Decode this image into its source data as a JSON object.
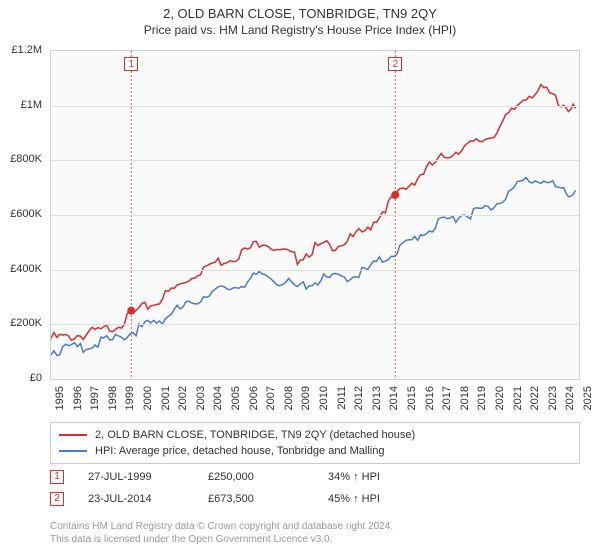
{
  "title": "2, OLD BARN CLOSE, TONBRIDGE, TN9 2QY",
  "subtitle": "Price paid vs. HM Land Registry's House Price Index (HPI)",
  "chart": {
    "type": "line",
    "background_color": "#fafafa",
    "border_color": "#d0d0d0",
    "grid_color": "#e0e0e0",
    "x_years": [
      1995,
      1996,
      1997,
      1998,
      1999,
      2000,
      2001,
      2002,
      2003,
      2004,
      2005,
      2006,
      2007,
      2008,
      2009,
      2010,
      2011,
      2012,
      2013,
      2014,
      2015,
      2016,
      2017,
      2018,
      2019,
      2020,
      2021,
      2022,
      2023,
      2024,
      2025
    ],
    "ylim": [
      0,
      1200000
    ],
    "ytick_step": 200000,
    "y_labels": [
      "£0",
      "£200K",
      "£400K",
      "£600K",
      "£800K",
      "£1M",
      "£1.2M"
    ],
    "series": [
      {
        "name": "price_paid",
        "color": "#d82e2e",
        "line_width": 1.5,
        "data": [
          [
            1995,
            160000
          ],
          [
            1996,
            165000
          ],
          [
            1997,
            175000
          ],
          [
            1998,
            190000
          ],
          [
            1999,
            215000
          ],
          [
            2000,
            260000
          ],
          [
            2001,
            295000
          ],
          [
            2002,
            340000
          ],
          [
            2003,
            390000
          ],
          [
            2004,
            430000
          ],
          [
            2005,
            450000
          ],
          [
            2006,
            475000
          ],
          [
            2007,
            520000
          ],
          [
            2008,
            480000
          ],
          [
            2009,
            450000
          ],
          [
            2010,
            490000
          ],
          [
            2011,
            500000
          ],
          [
            2012,
            520000
          ],
          [
            2013,
            560000
          ],
          [
            2014,
            640000
          ],
          [
            2015,
            700000
          ],
          [
            2016,
            760000
          ],
          [
            2017,
            810000
          ],
          [
            2018,
            850000
          ],
          [
            2019,
            870000
          ],
          [
            2020,
            900000
          ],
          [
            2021,
            970000
          ],
          [
            2022,
            1050000
          ],
          [
            2023,
            1070000
          ],
          [
            2024,
            1020000
          ],
          [
            2024.8,
            990000
          ]
        ]
      },
      {
        "name": "hpi",
        "color": "#4a7bc8",
        "line_width": 1.5,
        "data": [
          [
            1995,
            115000
          ],
          [
            1996,
            120000
          ],
          [
            1997,
            130000
          ],
          [
            1998,
            145000
          ],
          [
            1999,
            165000
          ],
          [
            2000,
            195000
          ],
          [
            2001,
            220000
          ],
          [
            2002,
            255000
          ],
          [
            2003,
            290000
          ],
          [
            2004,
            325000
          ],
          [
            2005,
            340000
          ],
          [
            2006,
            360000
          ],
          [
            2007,
            395000
          ],
          [
            2008,
            370000
          ],
          [
            2009,
            345000
          ],
          [
            2010,
            370000
          ],
          [
            2011,
            378000
          ],
          [
            2012,
            388000
          ],
          [
            2013,
            410000
          ],
          [
            2014,
            455000
          ],
          [
            2015,
            495000
          ],
          [
            2016,
            540000
          ],
          [
            2017,
            575000
          ],
          [
            2018,
            605000
          ],
          [
            2019,
            620000
          ],
          [
            2020,
            640000
          ],
          [
            2021,
            690000
          ],
          [
            2022,
            740000
          ],
          [
            2023,
            735000
          ],
          [
            2024,
            700000
          ],
          [
            2024.8,
            690000
          ]
        ]
      }
    ],
    "markers": [
      {
        "n": "1",
        "year": 1999.56,
        "value": 250000,
        "color": "#d82e2e"
      },
      {
        "n": "2",
        "year": 2014.56,
        "value": 673500,
        "color": "#d82e2e"
      }
    ]
  },
  "legend": {
    "items": [
      {
        "color": "#d82e2e",
        "label": "2, OLD BARN CLOSE, TONBRIDGE, TN9 2QY (detached house)"
      },
      {
        "color": "#4a7bc8",
        "label": "HPI: Average price, detached house, Tonbridge and Malling"
      }
    ]
  },
  "sales": [
    {
      "n": "1",
      "color": "#d82e2e",
      "date": "27-JUL-1999",
      "price": "£250,000",
      "diff": "34% ↑ HPI"
    },
    {
      "n": "2",
      "color": "#d82e2e",
      "date": "23-JUL-2014",
      "price": "£673,500",
      "diff": "45% ↑ HPI"
    }
  ],
  "footer": {
    "line1": "Contains HM Land Registry data © Crown copyright and database right 2024.",
    "line2": "This data is licensed under the Open Government Licence v3.0."
  }
}
